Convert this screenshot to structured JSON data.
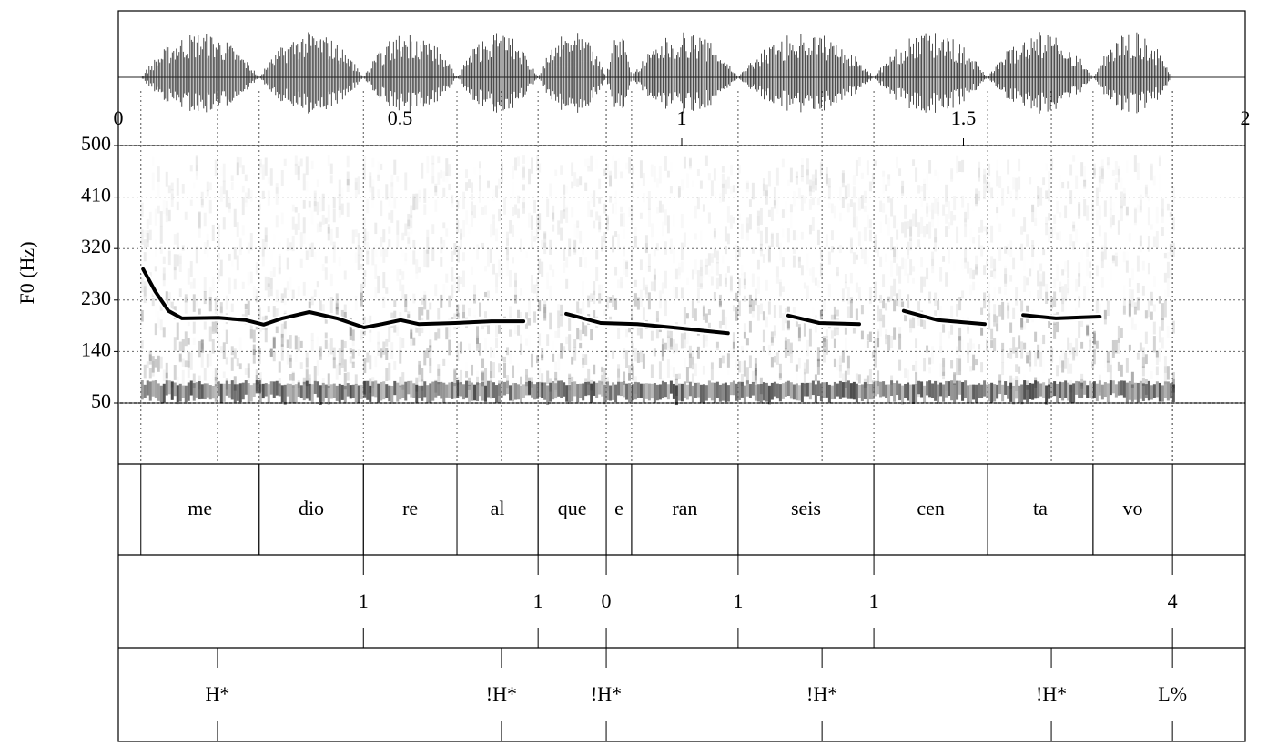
{
  "chart_data": {
    "type": "line",
    "ylabel": "F0 (Hz)",
    "xlim": [
      0,
      2
    ],
    "xticks": [
      0,
      0.5,
      1,
      1.5,
      2
    ],
    "ylim": [
      50,
      500
    ],
    "yticks": [
      50,
      140,
      230,
      320,
      410,
      500
    ],
    "grid": true,
    "series": [
      {
        "color": "#000000",
        "x": [
          0.044,
          0.065,
          0.089,
          0.113,
          0.178,
          0.226,
          0.258,
          0.291,
          0.339,
          0.388,
          0.436,
          0.468,
          0.501,
          0.533,
          0.598,
          0.662,
          0.719,
          null,
          0.795,
          0.856,
          0.921,
          0.985,
          1.082,
          null,
          1.189,
          1.244,
          1.315,
          null,
          1.394,
          1.454,
          1.538,
          null,
          1.606,
          1.664,
          1.742
        ],
        "values": [
          284,
          246,
          211,
          198,
          199,
          195,
          187,
          198,
          209,
          198,
          182,
          188,
          195,
          188,
          190,
          193,
          193,
          null,
          206,
          190,
          188,
          182,
          172,
          null,
          203,
          190,
          188,
          null,
          211,
          195,
          188,
          null,
          204,
          198,
          201
        ]
      }
    ],
    "words": [
      {
        "label": "me",
        "start": 0.04,
        "end": 0.25
      },
      {
        "label": "dio",
        "start": 0.25,
        "end": 0.435
      },
      {
        "label": "re",
        "start": 0.435,
        "end": 0.601
      },
      {
        "label": "al",
        "start": 0.601,
        "end": 0.745
      },
      {
        "label": "que",
        "start": 0.745,
        "end": 0.866
      },
      {
        "label": "e",
        "start": 0.866,
        "end": 0.911
      },
      {
        "label": "ran",
        "start": 0.911,
        "end": 1.1
      },
      {
        "label": "seis",
        "start": 1.1,
        "end": 1.341
      },
      {
        "label": "cen",
        "start": 1.341,
        "end": 1.543
      },
      {
        "label": "ta",
        "start": 1.543,
        "end": 1.73
      },
      {
        "label": "vo",
        "start": 1.73,
        "end": 1.871
      }
    ],
    "breaks": [
      {
        "index": 1,
        "time": 0.435
      },
      {
        "index": 1,
        "time": 0.745
      },
      {
        "index": 0,
        "time": 0.866
      },
      {
        "index": 1,
        "time": 1.1
      },
      {
        "index": 1,
        "time": 1.341
      },
      {
        "index": 4,
        "time": 1.871
      }
    ],
    "tones": [
      {
        "label": "H*",
        "time": 0.176
      },
      {
        "label": "!H*",
        "time": 0.68
      },
      {
        "label": "!H*",
        "time": 0.866
      },
      {
        "label": "!H*",
        "time": 1.249
      },
      {
        "label": "!H*",
        "time": 1.656
      },
      {
        "label": "L%",
        "time": 1.871
      }
    ]
  }
}
